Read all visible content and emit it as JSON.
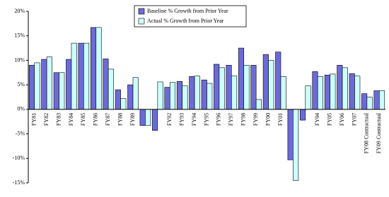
{
  "chart_data": {
    "type": "bar",
    "categories": [
      "FY81",
      "FY82",
      "FY83",
      "FY84",
      "FY85",
      "FY86",
      "FY87",
      "FY88",
      "FY89",
      null,
      null,
      "FY92",
      "FY93",
      "FY94",
      "FY95",
      "FY96",
      "FY97",
      "FY98",
      "FY99",
      "FY00",
      "FY01",
      null,
      null,
      "FY04",
      "FY05",
      "FY06",
      "FY07",
      "FY08 Contractual",
      "FY09 Contractual"
    ],
    "series": [
      {
        "name": "Baseline % Growth from Prior Year",
        "color": "#6b6bd8",
        "values": [
          9.0,
          10.2,
          7.5,
          10.2,
          13.5,
          16.7,
          10.3,
          4.0,
          5.0,
          -3.3,
          -4.3,
          4.5,
          5.7,
          6.7,
          6.0,
          9.2,
          9.0,
          12.5,
          9.0,
          11.2,
          11.7,
          -10.3,
          -2.2,
          7.7,
          7.0,
          9.0,
          7.3,
          3.2,
          3.8
        ]
      },
      {
        "name": "Actual % Growth from Prior Year",
        "color": "#ccffff",
        "values": [
          9.5,
          10.7,
          7.5,
          13.5,
          13.5,
          16.7,
          8.2,
          2.2,
          6.5,
          -3.3,
          5.6,
          5.5,
          4.8,
          6.8,
          5.3,
          8.5,
          6.8,
          9.0,
          2.0,
          10.0,
          6.7,
          -14.5,
          4.8,
          6.7,
          7.2,
          8.5,
          6.8,
          2.5,
          3.8
        ]
      }
    ],
    "ylim": [
      -15,
      20
    ],
    "yticks": [
      {
        "value": -15,
        "label": "-15%"
      },
      {
        "value": -10,
        "label": "-10%"
      },
      {
        "value": -5,
        "label": "-5%"
      },
      {
        "value": 0,
        "label": "0%"
      },
      {
        "value": 5,
        "label": "5%"
      },
      {
        "value": 10,
        "label": "10%"
      },
      {
        "value": 15,
        "label": "15%"
      },
      {
        "value": 20,
        "label": "20%"
      }
    ]
  }
}
